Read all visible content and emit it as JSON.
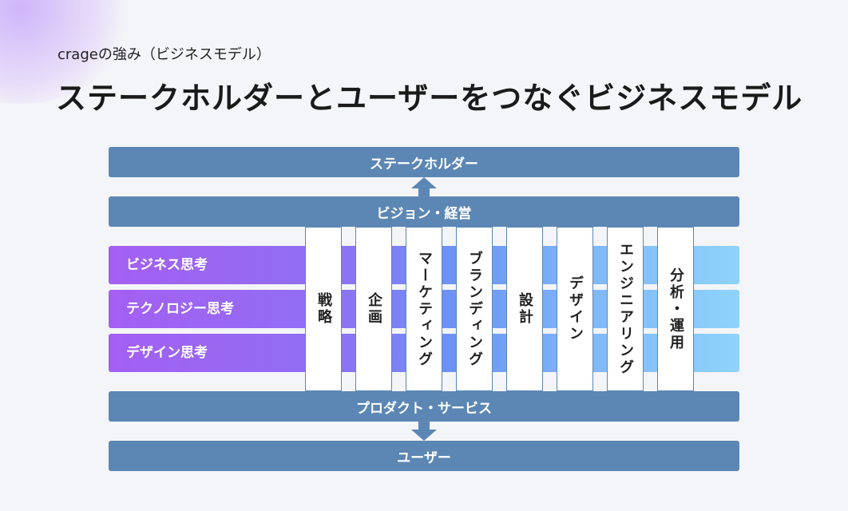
{
  "header": {
    "subtitle": "crageの強み（ビジネスモデル）",
    "title": "ステークホルダーとユーザーをつなぐビジネスモデル"
  },
  "layers": {
    "stakeholder": "ステークホルダー",
    "vision": "ビジョン・経営",
    "product": "プロダクト・サービス",
    "user": "ユーザー"
  },
  "rows": [
    "ビジネス思考",
    "テクノロジー思考",
    "デザイン思考"
  ],
  "columns": [
    "戦略",
    "企画",
    "マーケティング",
    "ブランディング",
    "設計",
    "デザイン",
    "エンジニアリング",
    "分析・運用"
  ]
}
